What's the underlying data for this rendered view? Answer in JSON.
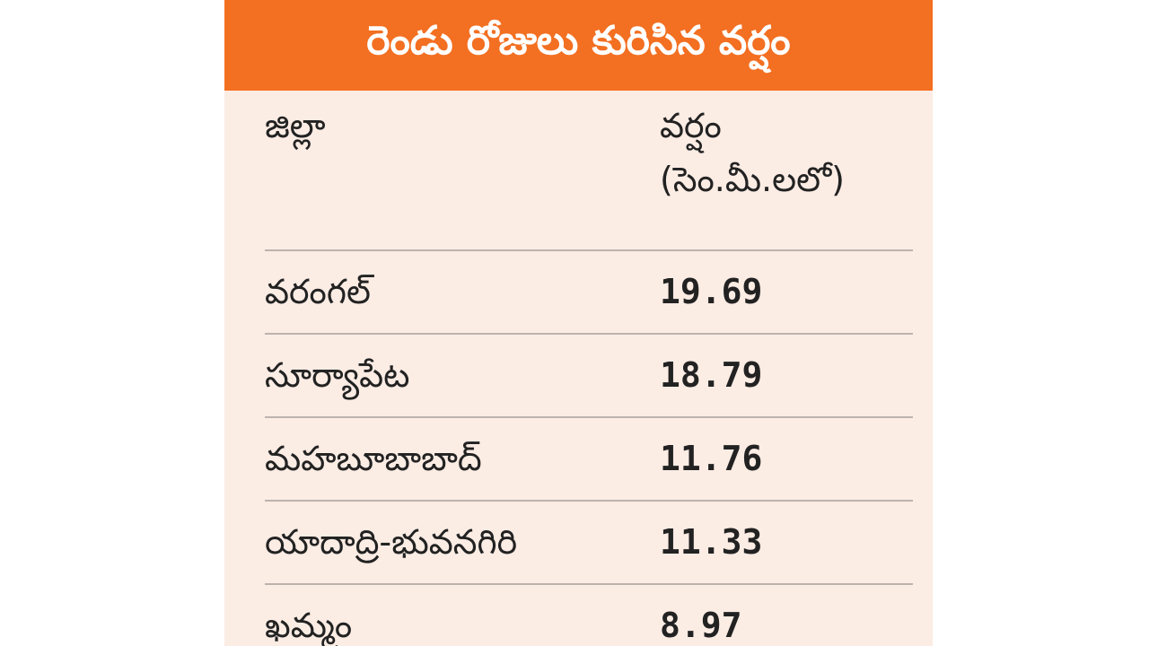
{
  "header": {
    "title": "రెండు రోజులు కురిసిన వర్షం"
  },
  "table": {
    "columns": [
      "జిల్లా",
      "వర్షం"
    ],
    "unit": "(సెం.మీ.లలో)",
    "rows": [
      [
        "వరంగల్",
        "19.69"
      ],
      [
        "సూర్యాపేట",
        "18.79"
      ],
      [
        "మహబూబాబాద్",
        "11.76"
      ],
      [
        "యాదాద్రి-భువనగిరి",
        "11.33"
      ],
      [
        "ఖమ్మం",
        "8.97"
      ]
    ]
  }
}
